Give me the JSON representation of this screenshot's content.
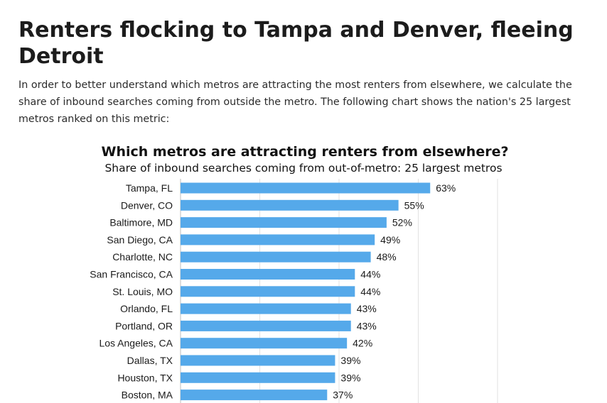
{
  "article": {
    "headline": "Renters flocking to Tampa and Denver, fleeing Detroit",
    "intro": "In order to better understand which metros are attracting the most renters from elsewhere, we calculate the share of inbound searches coming from outside the metro. The following chart shows the nation's 25 largest metros ranked on this metric:"
  },
  "colors": {
    "bar": "#55a9ea",
    "gridline": "#e2e2e2"
  },
  "chart_data": {
    "type": "bar",
    "orientation": "horizontal",
    "title": "Which metros are attracting renters from elsewhere?",
    "subtitle": "Share of inbound searches coming from out-of-metro: 25 largest metros",
    "categories": [
      "Tampa, FL",
      "Denver, CO",
      "Baltimore, MD",
      "San Diego, CA",
      "Charlotte, NC",
      "San Francisco, CA",
      "St. Louis, MO",
      "Orlando, FL",
      "Portland, OR",
      "Los Angeles, CA",
      "Dallas, TX",
      "Houston, TX",
      "Boston, MA"
    ],
    "values": [
      63,
      55,
      52,
      49,
      48,
      44,
      44,
      43,
      43,
      42,
      39,
      39,
      37
    ],
    "value_labels": [
      "63%",
      "55%",
      "52%",
      "49%",
      "48%",
      "44%",
      "44%",
      "43%",
      "43%",
      "42%",
      "39%",
      "39%",
      "37%"
    ],
    "unit": "%",
    "xlim": [
      0,
      80
    ],
    "grid": true,
    "xlabel": "",
    "ylabel": ""
  }
}
